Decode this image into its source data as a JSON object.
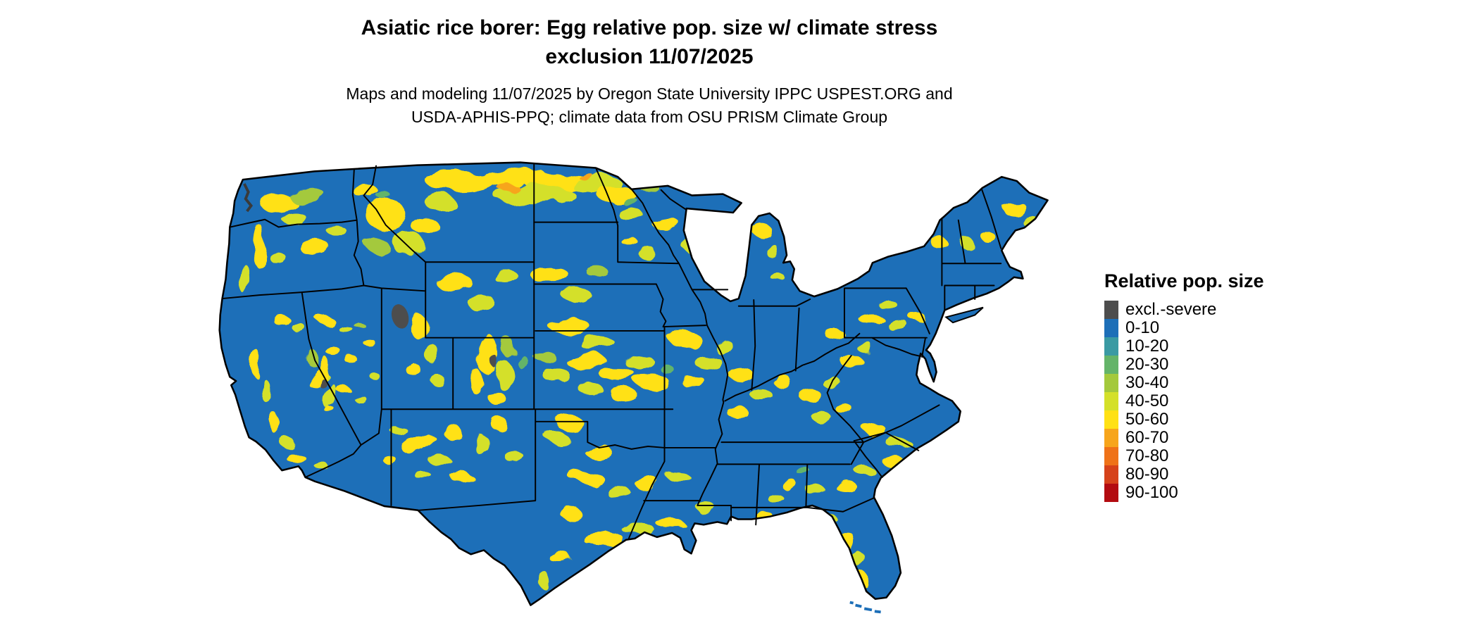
{
  "header": {
    "title_line1": "Asiatic rice borer: Egg relative pop. size w/ climate stress",
    "title_line2": "exclusion 11/07/2025",
    "subtitle_line1": "Maps and modeling 11/07/2025 by Oregon State University IPPC USPEST.ORG and",
    "subtitle_line2": "USDA-APHIS-PPQ; climate data from OSU PRISM Climate Group"
  },
  "legend": {
    "title": "Relative pop. size",
    "items": [
      {
        "label": "excl.-severe",
        "color": "#4d4d4d"
      },
      {
        "label": "0-10",
        "color": "#1d6fb8"
      },
      {
        "label": "10-20",
        "color": "#3a9aa3"
      },
      {
        "label": "20-30",
        "color": "#64b469"
      },
      {
        "label": "30-40",
        "color": "#a4c93c"
      },
      {
        "label": "40-50",
        "color": "#d4e029"
      },
      {
        "label": "50-60",
        "color": "#ffe115"
      },
      {
        "label": "60-70",
        "color": "#f7a51b"
      },
      {
        "label": "70-80",
        "color": "#ef7218"
      },
      {
        "label": "80-90",
        "color": "#d6421a"
      },
      {
        "label": "90-100",
        "color": "#b30b10"
      }
    ]
  }
}
